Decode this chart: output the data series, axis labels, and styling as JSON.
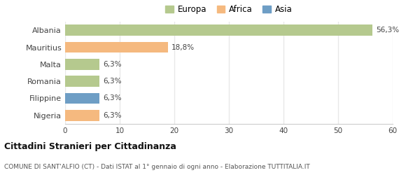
{
  "categories": [
    "Albania",
    "Mauritius",
    "Malta",
    "Romania",
    "Filippine",
    "Nigeria"
  ],
  "values": [
    56.3,
    18.8,
    6.3,
    6.3,
    6.3,
    6.3
  ],
  "bar_colors": [
    "#b5c98e",
    "#f5b97f",
    "#b5c98e",
    "#b5c98e",
    "#6e9ec5",
    "#f5b97f"
  ],
  "value_labels": [
    "56,3%",
    "18,8%",
    "6,3%",
    "6,3%",
    "6,3%",
    "6,3%"
  ],
  "xlim": [
    0,
    60
  ],
  "xticks": [
    0,
    10,
    20,
    30,
    40,
    50,
    60
  ],
  "legend_labels": [
    "Europa",
    "Africa",
    "Asia"
  ],
  "legend_colors": [
    "#b5c98e",
    "#f5b97f",
    "#6e9ec5"
  ],
  "title": "Cittadini Stranieri per Cittadinanza",
  "subtitle": "COMUNE DI SANT'ALFIO (CT) - Dati ISTAT al 1° gennaio di ogni anno - Elaborazione TUTTITALIA.IT",
  "background_color": "#ffffff",
  "plot_bg_color": "#ffffff",
  "grid_color": "#e8e8e8",
  "bar_height": 0.65
}
